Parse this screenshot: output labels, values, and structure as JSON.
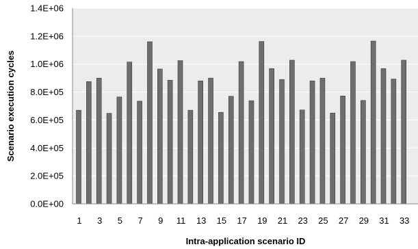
{
  "chart_data": {
    "type": "bar",
    "xlabel": "Intra-application scenario ID",
    "ylabel": "Scenario execution cycles",
    "ylim": [
      0,
      1400000
    ],
    "yticks": [
      0,
      200000,
      400000,
      600000,
      800000,
      1000000,
      1200000,
      1400000
    ],
    "ytick_labels": [
      "0.0E+00",
      "2.0E+05",
      "4.0E+05",
      "6.0E+05",
      "8.0E+05",
      "1.0E+06",
      "1.2E+06",
      "1.4E+06"
    ],
    "xtick_labels": [
      "1",
      "3",
      "5",
      "7",
      "9",
      "11",
      "13",
      "15",
      "17",
      "19",
      "21",
      "23",
      "25",
      "27",
      "29",
      "31",
      "33"
    ],
    "categories": [
      "1",
      "2",
      "3",
      "4",
      "5",
      "6",
      "7",
      "8",
      "9",
      "10",
      "11",
      "12",
      "13",
      "14",
      "15",
      "16",
      "17",
      "18",
      "19",
      "20",
      "21",
      "22",
      "23",
      "24",
      "25",
      "26",
      "27",
      "28",
      "29",
      "30",
      "31",
      "32",
      "33"
    ],
    "values": [
      670000,
      875000,
      900000,
      648000,
      765000,
      1015000,
      735000,
      1160000,
      965000,
      885000,
      1025000,
      670000,
      880000,
      900000,
      655000,
      770000,
      1018000,
      738000,
      1162000,
      968000,
      890000,
      1028000,
      672000,
      880000,
      900000,
      650000,
      772000,
      1018000,
      740000,
      1165000,
      968000,
      893000,
      1028000
    ],
    "grid": true,
    "legend": false,
    "colors": {
      "bar": "#6e6e6e",
      "bar_edge": "#3a3a3a",
      "plot_bg": "#ececec",
      "grid": "#ffffff",
      "axis": "#8a8a8a"
    }
  }
}
